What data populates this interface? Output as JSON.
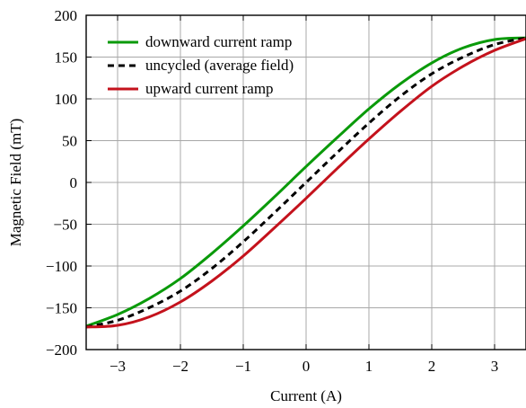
{
  "chart_data": {
    "type": "line",
    "xlabel": "Current (A)",
    "ylabel": "Magnetic Field (mT)",
    "xlim": [
      -3.5,
      3.5
    ],
    "ylim": [
      -200,
      200
    ],
    "x_ticks": [
      -3,
      -2,
      -1,
      0,
      1,
      2,
      3
    ],
    "x_tick_labels": [
      "−3",
      "−2",
      "−1",
      "0",
      "1",
      "2",
      "3"
    ],
    "y_ticks": [
      -200,
      -150,
      -100,
      -50,
      0,
      50,
      100,
      150,
      200
    ],
    "y_tick_labels": [
      "−200",
      "−150",
      "−100",
      "−50",
      "0",
      "50",
      "100",
      "150",
      "200"
    ],
    "grid": true,
    "legend_position": "top-left",
    "series": [
      {
        "name": "downward current ramp",
        "color": "#0a9a0a",
        "style": "solid",
        "x": [
          -3.5,
          -3.0,
          -2.5,
          -2.0,
          -1.5,
          -1.0,
          -0.5,
          0.0,
          0.5,
          1.0,
          1.5,
          2.0,
          2.5,
          3.0,
          3.5
        ],
        "y": [
          -172,
          -158,
          -139,
          -115,
          -85,
          -52,
          -17,
          19,
          54,
          88,
          118,
          143,
          161,
          171,
          173
        ]
      },
      {
        "name": "uncycled (average field)",
        "color": "#000000",
        "style": "dashed",
        "x": [
          -3.5,
          -3.0,
          -2.5,
          -2.0,
          -1.5,
          -1.0,
          -0.5,
          0.0,
          0.5,
          1.0,
          1.5,
          2.0,
          2.5,
          3.0,
          3.5
        ],
        "y": [
          -173,
          -165,
          -150,
          -130,
          -103,
          -71,
          -36,
          0,
          36,
          71,
          103,
          130,
          150,
          165,
          173
        ]
      },
      {
        "name": "upward current ramp",
        "color": "#c4121c",
        "style": "solid",
        "x": [
          -3.5,
          -3.0,
          -2.5,
          -2.0,
          -1.5,
          -1.0,
          -0.5,
          0.0,
          0.5,
          1.0,
          1.5,
          2.0,
          2.5,
          3.0,
          3.5
        ],
        "y": [
          -173,
          -171,
          -161,
          -143,
          -118,
          -88,
          -54,
          -19,
          17,
          52,
          85,
          115,
          139,
          158,
          172
        ]
      }
    ]
  }
}
